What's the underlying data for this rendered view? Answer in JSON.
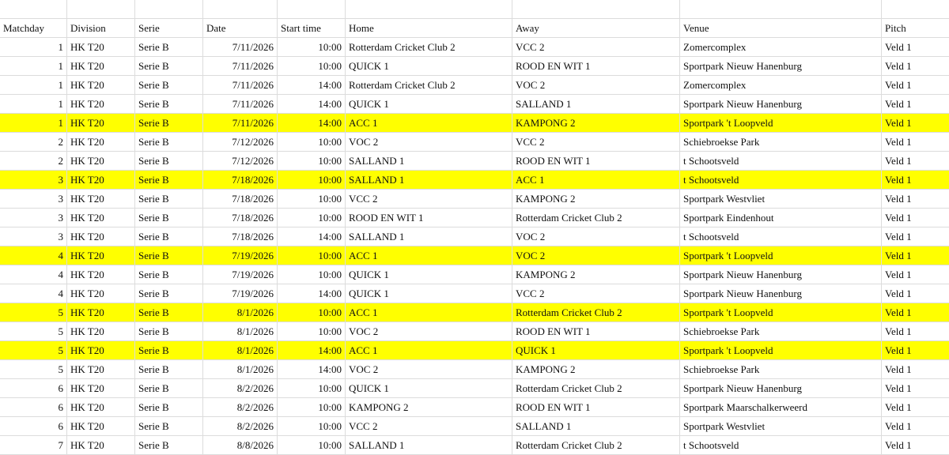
{
  "colors": {
    "highlight": "#ffff00",
    "grid": "#dcdcdc"
  },
  "columns": [
    "Matchday",
    "Division",
    "Serie",
    "Date",
    "Start time",
    "Home",
    "Away",
    "Venue",
    "Pitch"
  ],
  "rows": [
    {
      "cells": [
        "1",
        "HK T20",
        "Serie B",
        "7/11/2026",
        "10:00",
        "Rotterdam Cricket Club 2",
        "VCC 2",
        "Zomercomplex",
        "Veld 1"
      ],
      "highlighted": false
    },
    {
      "cells": [
        "1",
        "HK T20",
        "Serie B",
        "7/11/2026",
        "10:00",
        "QUICK 1",
        "ROOD EN WIT 1",
        "Sportpark Nieuw Hanenburg",
        "Veld 1"
      ],
      "highlighted": false
    },
    {
      "cells": [
        "1",
        "HK T20",
        "Serie B",
        "7/11/2026",
        "14:00",
        "Rotterdam Cricket Club 2",
        "VOC 2",
        "Zomercomplex",
        "Veld 1"
      ],
      "highlighted": false
    },
    {
      "cells": [
        "1",
        "HK T20",
        "Serie B",
        "7/11/2026",
        "14:00",
        "QUICK 1",
        "SALLAND 1",
        "Sportpark Nieuw Hanenburg",
        "Veld 1"
      ],
      "highlighted": false
    },
    {
      "cells": [
        "1",
        "HK T20",
        "Serie B",
        "7/11/2026",
        "14:00",
        "ACC 1",
        "KAMPONG 2",
        "Sportpark 't Loopveld",
        "Veld 1"
      ],
      "highlighted": true
    },
    {
      "cells": [
        "2",
        "HK T20",
        "Serie B",
        "7/12/2026",
        "10:00",
        "VOC 2",
        "VCC 2",
        "Schiebroekse Park",
        "Veld 1"
      ],
      "highlighted": false
    },
    {
      "cells": [
        "2",
        "HK T20",
        "Serie B",
        "7/12/2026",
        "10:00",
        "SALLAND 1",
        "ROOD EN WIT 1",
        "t Schootsveld",
        "Veld 1"
      ],
      "highlighted": false
    },
    {
      "cells": [
        "3",
        "HK T20",
        "Serie B",
        "7/18/2026",
        "10:00",
        "SALLAND 1",
        "ACC 1",
        "t Schootsveld",
        "Veld 1"
      ],
      "highlighted": true
    },
    {
      "cells": [
        "3",
        "HK T20",
        "Serie B",
        "7/18/2026",
        "10:00",
        "VCC 2",
        "KAMPONG 2",
        "Sportpark Westvliet",
        "Veld 1"
      ],
      "highlighted": false
    },
    {
      "cells": [
        "3",
        "HK T20",
        "Serie B",
        "7/18/2026",
        "10:00",
        "ROOD EN WIT 1",
        "Rotterdam Cricket Club 2",
        "Sportpark Eindenhout",
        "Veld 1"
      ],
      "highlighted": false
    },
    {
      "cells": [
        "3",
        "HK T20",
        "Serie B",
        "7/18/2026",
        "14:00",
        "SALLAND 1",
        "VOC 2",
        "t Schootsveld",
        "Veld 1"
      ],
      "highlighted": false
    },
    {
      "cells": [
        "4",
        "HK T20",
        "Serie B",
        "7/19/2026",
        "10:00",
        "ACC 1",
        "VOC 2",
        "Sportpark 't Loopveld",
        "Veld 1"
      ],
      "highlighted": true
    },
    {
      "cells": [
        "4",
        "HK T20",
        "Serie B",
        "7/19/2026",
        "10:00",
        "QUICK 1",
        "KAMPONG 2",
        "Sportpark Nieuw Hanenburg",
        "Veld 1"
      ],
      "highlighted": false
    },
    {
      "cells": [
        "4",
        "HK T20",
        "Serie B",
        "7/19/2026",
        "14:00",
        "QUICK 1",
        "VCC 2",
        "Sportpark Nieuw Hanenburg",
        "Veld 1"
      ],
      "highlighted": false
    },
    {
      "cells": [
        "5",
        "HK T20",
        "Serie B",
        "8/1/2026",
        "10:00",
        "ACC 1",
        "Rotterdam Cricket Club 2",
        "Sportpark 't Loopveld",
        "Veld 1"
      ],
      "highlighted": true
    },
    {
      "cells": [
        "5",
        "HK T20",
        "Serie B",
        "8/1/2026",
        "10:00",
        "VOC 2",
        "ROOD EN WIT 1",
        "Schiebroekse Park",
        "Veld 1"
      ],
      "highlighted": false
    },
    {
      "cells": [
        "5",
        "HK T20",
        "Serie B",
        "8/1/2026",
        "14:00",
        "ACC 1",
        "QUICK 1",
        "Sportpark 't Loopveld",
        "Veld 1"
      ],
      "highlighted": true
    },
    {
      "cells": [
        "5",
        "HK T20",
        "Serie B",
        "8/1/2026",
        "14:00",
        "VOC 2",
        "KAMPONG 2",
        "Schiebroekse Park",
        "Veld 1"
      ],
      "highlighted": false
    },
    {
      "cells": [
        "6",
        "HK T20",
        "Serie B",
        "8/2/2026",
        "10:00",
        "QUICK 1",
        "Rotterdam Cricket Club 2",
        "Sportpark Nieuw Hanenburg",
        "Veld 1"
      ],
      "highlighted": false
    },
    {
      "cells": [
        "6",
        "HK T20",
        "Serie B",
        "8/2/2026",
        "10:00",
        "KAMPONG 2",
        "ROOD EN WIT 1",
        "Sportpark Maarschalkerweerd",
        "Veld 1"
      ],
      "highlighted": false
    },
    {
      "cells": [
        "6",
        "HK T20",
        "Serie B",
        "8/2/2026",
        "10:00",
        "VCC 2",
        "SALLAND 1",
        "Sportpark Westvliet",
        "Veld 1"
      ],
      "highlighted": false
    },
    {
      "cells": [
        "7",
        "HK T20",
        "Serie B",
        "8/8/2026",
        "10:00",
        "SALLAND 1",
        "Rotterdam Cricket Club 2",
        "t Schootsveld",
        "Veld 1"
      ],
      "highlighted": false
    }
  ]
}
